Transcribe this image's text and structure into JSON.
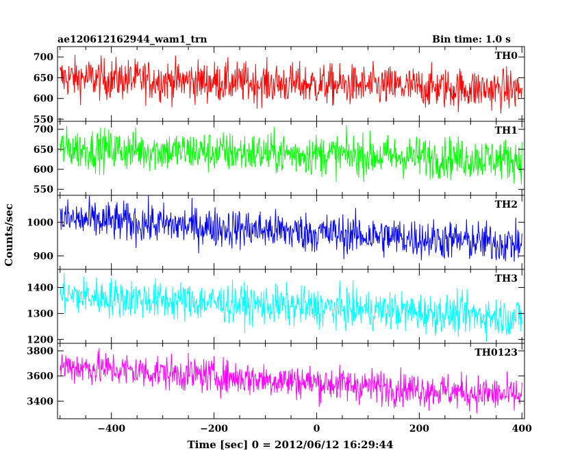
{
  "chart_data": {
    "type": "line",
    "title": "ae120612162944_wam1_trn",
    "bin_time": "Bin time: 1.0 s",
    "xlabel": "Time [sec] 0 = 2012/06/12 16:29:44",
    "ylabel": "Counts/sec",
    "xlim": [
      -505,
      405
    ],
    "x_ticks": [
      -400,
      -200,
      0,
      200,
      400
    ],
    "x_range": [
      -500,
      400
    ],
    "grid": false,
    "panels": [
      {
        "name": "TH0",
        "color": "#ff0000",
        "ylim": [
          545,
          725
        ],
        "y_ticks": [
          550,
          600,
          650,
          700
        ],
        "trend_start": 650,
        "trend_end": 620,
        "noise": 25
      },
      {
        "name": "TH1",
        "color": "#00ff00",
        "ylim": [
          535,
          720
        ],
        "y_ticks": [
          550,
          600,
          650,
          700
        ],
        "trend_start": 652,
        "trend_end": 625,
        "noise": 26
      },
      {
        "name": "TH2",
        "color": "#0000ff",
        "ylim": [
          860,
          1080
        ],
        "y_ticks": [
          900,
          1000
        ],
        "trend_start": 1010,
        "trend_end": 935,
        "noise": 30
      },
      {
        "name": "TH3",
        "color": "#00ffff",
        "ylim": [
          1185,
          1470
        ],
        "y_ticks": [
          1200,
          1300,
          1400
        ],
        "trend_start": 1370,
        "trend_end": 1285,
        "noise": 38
      },
      {
        "name": "TH0123",
        "color": "#ff00ff",
        "ylim": [
          3260,
          3860
        ],
        "y_ticks": [
          3400,
          3600,
          3800
        ],
        "trend_start": 3680,
        "trend_end": 3440,
        "noise": 70
      }
    ]
  }
}
